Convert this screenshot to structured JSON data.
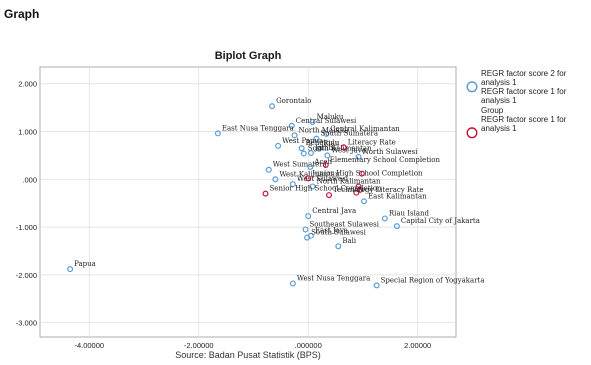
{
  "heading": "Graph",
  "colors": {
    "obs": "#5b9bd5",
    "var": "#c0143c",
    "grid": "#dcdcdc",
    "frame": "#999999"
  },
  "chart_data": {
    "type": "scatter",
    "title": "Biplot Graph",
    "source": "Source: Badan Pusat Statistik (BPS)",
    "xlabel": "",
    "ylabel": "",
    "xlim": [
      -4.9,
      2.7
    ],
    "ylim": [
      -3.3,
      2.35
    ],
    "xticks": [
      -4,
      -2,
      0,
      2
    ],
    "xtick_labels": [
      "-4.00000",
      "-2.00000",
      ".000000",
      "2.00000"
    ],
    "yticks": [
      2,
      1,
      0,
      -1,
      -2,
      -3
    ],
    "ytick_labels": [
      "2.000",
      "1.000",
      ".000",
      "-1.000",
      "-2.000",
      "-3.000"
    ],
    "grid": true,
    "legend": [
      {
        "marker": "obs",
        "lines": [
          "REGR factor score   2 for",
          "analysis 1",
          "REGR factor score   1 for",
          "analysis 1"
        ]
      },
      {
        "marker": "var",
        "lines": [
          "Group",
          "REGR factor score   1 for",
          "analysis 1"
        ]
      }
    ],
    "series": [
      {
        "marker": "obs",
        "points": [
          {
            "label": "Gorontalo",
            "x": -0.66,
            "y": 1.53
          },
          {
            "label": "Central Sulawesi",
            "x": -0.3,
            "y": 1.12
          },
          {
            "label": "Maluku",
            "x": 0.08,
            "y": 1.2
          },
          {
            "label": "Central Kalimantan",
            "x": 0.33,
            "y": 0.95
          },
          {
            "label": "North Maluku",
            "x": -0.25,
            "y": 0.92
          },
          {
            "label": "South Sumatera",
            "x": 0.15,
            "y": 0.85
          },
          {
            "label": "East Nusa Tenggara",
            "x": -1.65,
            "y": 0.96
          },
          {
            "label": "West Papua",
            "x": -0.55,
            "y": 0.7
          },
          {
            "label": "Bengkulu",
            "x": -0.12,
            "y": 0.65
          },
          {
            "label": "Riau",
            "x": 0.2,
            "y": 0.64
          },
          {
            "label": "South Kalimantan",
            "x": -0.08,
            "y": 0.54
          },
          {
            "label": "Jambi",
            "x": 0.05,
            "y": 0.55
          },
          {
            "label": "West Java",
            "x": 0.35,
            "y": 0.5
          },
          {
            "label": "North Sulawesi",
            "x": 0.92,
            "y": 0.47
          },
          {
            "label": "West Sumatera",
            "x": -0.72,
            "y": 0.2
          },
          {
            "label": "Aceh",
            "x": 0.04,
            "y": 0.26
          },
          {
            "label": "West Kalimantan",
            "x": -0.6,
            "y": 0.0
          },
          {
            "label": "West Sulawesi",
            "x": -0.28,
            "y": -0.1
          },
          {
            "label": "North Kalimantan",
            "x": 0.08,
            "y": -0.15
          },
          {
            "label": "East Kalimantan",
            "x": 1.02,
            "y": -0.46
          },
          {
            "label": "Central Java",
            "x": 0.0,
            "y": -0.77
          },
          {
            "label": "Riau Island",
            "x": 1.4,
            "y": -0.82
          },
          {
            "label": "Southeast Sulawesi",
            "x": -0.05,
            "y": -1.05
          },
          {
            "label": "Capital City of Jakarta",
            "x": 1.62,
            "y": -0.98
          },
          {
            "label": "East Java",
            "x": 0.05,
            "y": -1.18
          },
          {
            "label": "South Sulawesi",
            "x": -0.02,
            "y": -1.22
          },
          {
            "label": "Bali",
            "x": 0.55,
            "y": -1.4
          },
          {
            "label": "Papua",
            "x": -4.35,
            "y": -1.88
          },
          {
            "label": "West Nusa Tenggara",
            "x": -0.28,
            "y": -2.18
          },
          {
            "label": "Special Region of Yogyakarta",
            "x": 1.25,
            "y": -2.22
          }
        ]
      },
      {
        "marker": "var",
        "points": [
          {
            "label": "Literacy Rate",
            "x": 0.65,
            "y": 0.67
          },
          {
            "label": "Elementary School Completion",
            "x": 0.32,
            "y": 0.3
          },
          {
            "label": "Junior High School Completion",
            "x": 0.0,
            "y": 0.02
          },
          {
            "label": "",
            "x": 0.98,
            "y": 0.12
          },
          {
            "label": "",
            "x": 0.92,
            "y": -0.15
          },
          {
            "label": "",
            "x": 0.95,
            "y": -0.22
          },
          {
            "label": "",
            "x": 0.88,
            "y": -0.28
          },
          {
            "label": "Senior High School Completion",
            "x": -0.78,
            "y": -0.3
          },
          {
            "label": "Technology Literacy Rate",
            "x": 0.38,
            "y": -0.33
          }
        ]
      }
    ]
  }
}
